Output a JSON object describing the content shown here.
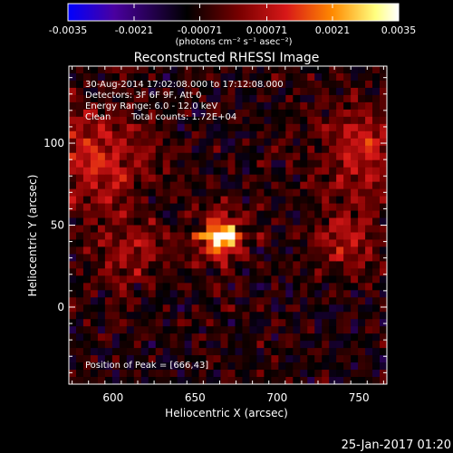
{
  "chart_data": {
    "type": "heatmap",
    "title": "Reconstructed RHESSI Image",
    "xlabel": "Heliocentric X (arcsec)",
    "ylabel": "Heliocentric Y (arcsec)",
    "xlim": [
      573,
      767
    ],
    "ylim": [
      -47,
      147
    ],
    "x_ticks": [
      600,
      650,
      700,
      750
    ],
    "y_ticks": [
      0,
      50,
      100
    ],
    "colorbar": {
      "min": -0.0035,
      "max": 0.0035,
      "tick_values": [
        -0.0035,
        -0.0021,
        -0.00071,
        0.00071,
        0.0021,
        0.0035
      ],
      "tick_labels": [
        "-0.0035",
        "-0.0021",
        "-0.00071",
        "0.00071",
        "0.0021",
        "0.0035"
      ],
      "units_label": "(photons cm⁻² s⁻¹ asec⁻²)",
      "colormap": [
        "#0000ff",
        "#4a00a0",
        "#000000",
        "#7a0000",
        "#d81818",
        "#ff8a00",
        "#ffff80",
        "#ffffff"
      ]
    },
    "annotations": {
      "time_range": "30-Aug-2014 17:02:08.000 to 17:12:08.000",
      "detectors": "Detectors: 3F 6F 9F, Att 0",
      "energy_range": "Energy Range: 6.0 - 12.0 keV",
      "algorithm": "Clean",
      "total_counts": "Total counts: 1.72E+04",
      "peak_position": "Position of Peak = [666,43]"
    },
    "peak": {
      "x": 666,
      "y": 43
    }
  },
  "footer": {
    "timestamp": "25-Jan-2017 01:20"
  }
}
